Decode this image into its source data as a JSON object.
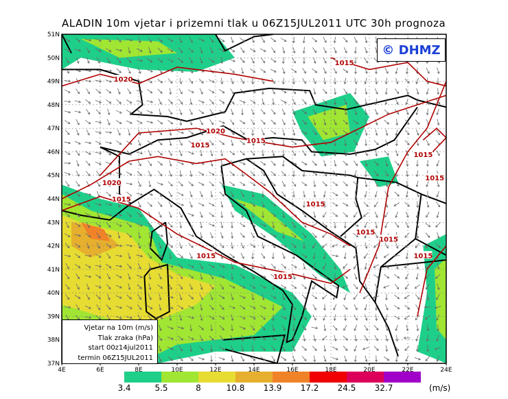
{
  "title": "ALADIN 10m vjetar i prizemni tlak u 06Z15JUL2011 UTC 30h prognoza",
  "logo": "© DHMZ",
  "legend_box": {
    "line1": "Vjetar na 10m (m/s)",
    "line2": "Tlak zraka (hPa)",
    "line3": "start 00z14jul2011",
    "line4": "termin 06Z15JUL2011"
  },
  "map": {
    "lon_labels": [
      "4E",
      "6E",
      "8E",
      "10E",
      "12E",
      "14E",
      "16E",
      "18E",
      "20E",
      "22E",
      "24E"
    ],
    "lat_labels": [
      "37N",
      "38N",
      "39N",
      "40N",
      "41N",
      "42N",
      "43N",
      "44N",
      "45N",
      "46N",
      "47N",
      "48N",
      "49N",
      "50N",
      "51N"
    ],
    "isobar_labels": [
      "1020",
      "1020",
      "1020",
      "1015",
      "1015",
      "1015",
      "1015",
      "1015",
      "1015",
      "1015",
      "1015",
      "1015",
      "1015",
      "1015",
      "1015"
    ],
    "isobar_color": "#b00000",
    "border_color": "#000000",
    "arrow_color": "#666666"
  },
  "colorbar": {
    "unit": "(m/s)",
    "thresholds": [
      "3.4",
      "5.5",
      "8",
      "10.8",
      "13.9",
      "17.2",
      "24.5",
      "32.7"
    ],
    "colors": [
      "#1ecf8a",
      "#a0e632",
      "#e6dc32",
      "#e6af2d",
      "#f08228",
      "#f00000",
      "#dc005a",
      "#a000c8"
    ]
  }
}
